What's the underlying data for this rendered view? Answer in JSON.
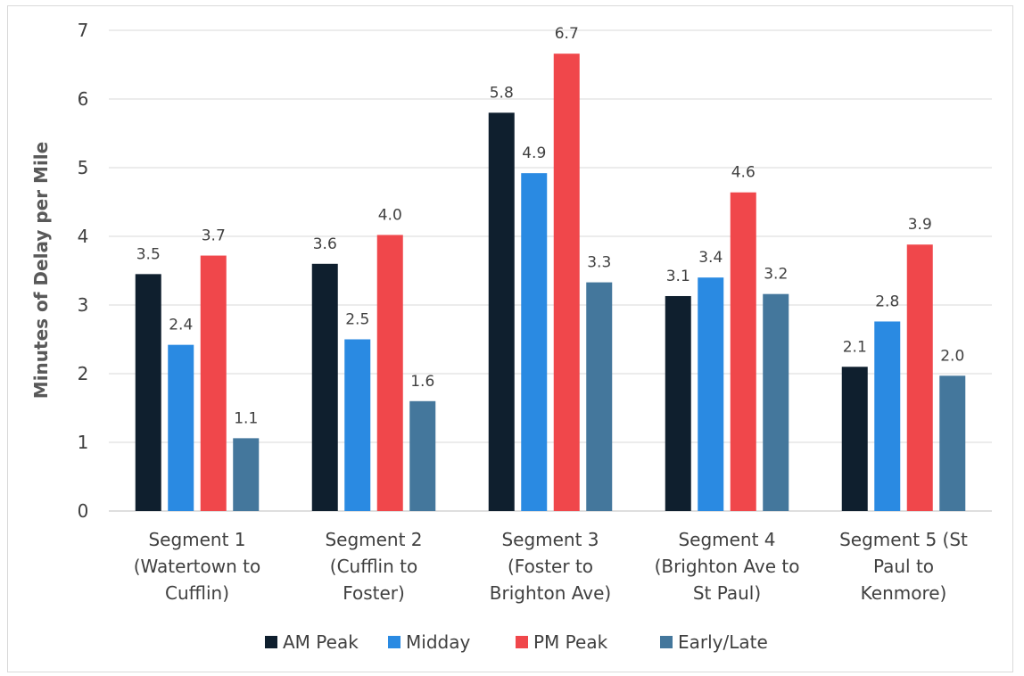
{
  "chart_data": {
    "type": "bar",
    "title": "",
    "xlabel": "",
    "ylabel": "Minutes of Delay per Mile",
    "ylim": [
      0,
      7
    ],
    "yticks": [
      0,
      1,
      2,
      3,
      4,
      5,
      6,
      7
    ],
    "grid": true,
    "legend_position": "bottom",
    "categories": [
      [
        "Segment 1",
        "(Watertown to",
        "Cufflin)"
      ],
      [
        "Segment 2",
        "(Cufflin to",
        "Foster)"
      ],
      [
        "Segment 3",
        "(Foster to",
        "Brighton Ave)"
      ],
      [
        "Segment 4",
        "(Brighton Ave to",
        "St Paul)"
      ],
      [
        "Segment 5 (St",
        "Paul to",
        "Kenmore)"
      ]
    ],
    "series": [
      {
        "name": "AM Peak",
        "color": "#0f1f2e",
        "values": [
          3.45,
          3.6,
          5.8,
          3.13,
          2.1
        ],
        "labels": [
          "3.5",
          "3.6",
          "5.8",
          "3.1",
          "2.1"
        ]
      },
      {
        "name": "Midday",
        "color": "#2a8ae2",
        "values": [
          2.42,
          2.5,
          4.92,
          3.4,
          2.76
        ],
        "labels": [
          "2.4",
          "2.5",
          "4.9",
          "3.4",
          "2.8"
        ]
      },
      {
        "name": "PM Peak",
        "color": "#f0474b",
        "values": [
          3.72,
          4.02,
          6.66,
          4.64,
          3.88
        ],
        "labels": [
          "3.7",
          "4.0",
          "6.7",
          "4.6",
          "3.9"
        ]
      },
      {
        "name": "Early/Late",
        "color": "#44779c",
        "values": [
          1.06,
          1.6,
          3.33,
          3.16,
          1.97
        ],
        "labels": [
          "1.1",
          "1.6",
          "3.3",
          "3.2",
          "2.0"
        ]
      }
    ]
  }
}
